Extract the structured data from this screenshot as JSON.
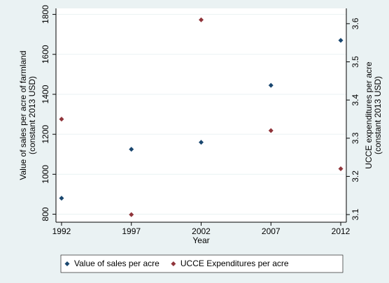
{
  "chart_data": {
    "type": "scatter",
    "x_label": "Year",
    "y_label": [
      "Value of sales per acre of farmland",
      "(constant 2013 USD)"
    ],
    "y2_label": [
      "UCCE expenditures per acre",
      "(constant 2013 USD)"
    ],
    "x": [
      1992,
      1997,
      2002,
      2007,
      2012
    ],
    "series": [
      {
        "name": "Value of sales per acre",
        "color": "#1a476f",
        "values": [
          880,
          1125,
          1160,
          1445,
          1670
        ]
      },
      {
        "name": "UCCE Expenditures per acre",
        "color": "#90353b",
        "axis": "y2",
        "values": [
          3.35,
          3.1,
          3.61,
          3.32,
          3.22
        ]
      }
    ],
    "xlim": [
      1991.6,
      2012.4
    ],
    "xticks": [
      1992,
      1997,
      2002,
      2007,
      2012
    ],
    "ylim": [
      760,
      1830
    ],
    "yticks": [
      800,
      1000,
      1200,
      1400,
      1600,
      1800
    ],
    "y2lim": [
      3.08,
      3.64
    ],
    "y2ticks": [
      3.1,
      3.2,
      3.3,
      3.4,
      3.5,
      3.6
    ],
    "grid": true,
    "legend": "bottom"
  }
}
